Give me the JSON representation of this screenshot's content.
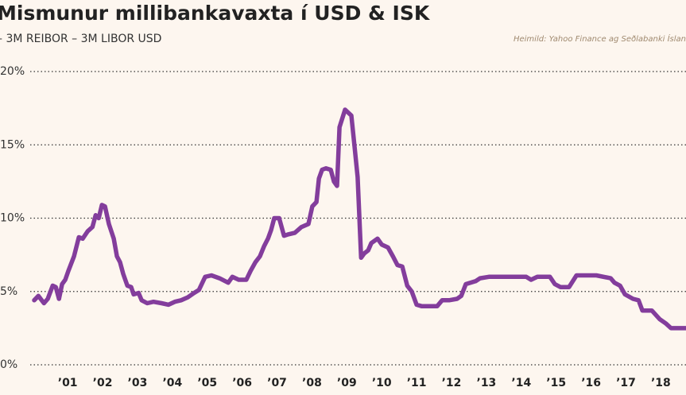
{
  "chart_data": {
    "type": "line",
    "title": "Mismunur millibankavaxta í USD & ISK",
    "subtitle": "– 3M REIBOR – 3M LIBOR USD",
    "source": "Heimild: Yahoo Finance ag Seðlabanki Íslan",
    "color": "#833d9c",
    "grid": true,
    "xlim": [
      1999.06,
      2018.72
    ],
    "ylim": [
      0,
      20
    ],
    "yticks": [
      {
        "value": 0,
        "label": "0%"
      },
      {
        "value": 5,
        "label": "5%"
      },
      {
        "value": 10,
        "label": "10%"
      },
      {
        "value": 15,
        "label": "15%"
      },
      {
        "value": 20,
        "label": "20%"
      }
    ],
    "xticks": [
      {
        "value": 2001,
        "label": "’01"
      },
      {
        "value": 2002,
        "label": "’02"
      },
      {
        "value": 2003,
        "label": "’03"
      },
      {
        "value": 2004,
        "label": "’04"
      },
      {
        "value": 2005,
        "label": "’05"
      },
      {
        "value": 2006,
        "label": "’06"
      },
      {
        "value": 2007,
        "label": "’07"
      },
      {
        "value": 2008,
        "label": "’08"
      },
      {
        "value": 2009,
        "label": "’09"
      },
      {
        "value": 2010,
        "label": "’10"
      },
      {
        "value": 2011,
        "label": "’11"
      },
      {
        "value": 2012,
        "label": "’12"
      },
      {
        "value": 2013,
        "label": "’13"
      },
      {
        "value": 2014,
        "label": "’14"
      },
      {
        "value": 2015,
        "label": "’15"
      },
      {
        "value": 2016,
        "label": "’16"
      },
      {
        "value": 2017,
        "label": "’17"
      },
      {
        "value": 2018,
        "label": "’18"
      }
    ],
    "x": [
      2000.04,
      2000.16,
      2000.32,
      2000.43,
      2000.57,
      2000.66,
      2000.75,
      2000.84,
      2000.93,
      2001.02,
      2001.18,
      2001.32,
      2001.43,
      2001.57,
      2001.71,
      2001.8,
      2001.89,
      2001.98,
      2002.07,
      2002.18,
      2002.32,
      2002.41,
      2002.5,
      2002.59,
      2002.71,
      2002.82,
      2002.89,
      2003.03,
      2003.12,
      2003.28,
      2003.46,
      2003.69,
      2003.89,
      2004.07,
      2004.25,
      2004.44,
      2004.62,
      2004.76,
      2004.94,
      2005.12,
      2005.35,
      2005.6,
      2005.72,
      2005.9,
      2006.12,
      2006.24,
      2006.38,
      2006.51,
      2006.63,
      2006.74,
      2006.83,
      2006.92,
      2007.06,
      2007.2,
      2007.33,
      2007.51,
      2007.7,
      2007.9,
      2008.01,
      2008.13,
      2008.2,
      2008.29,
      2008.4,
      2008.54,
      2008.63,
      2008.72,
      2008.79,
      2008.95,
      2009.13,
      2009.22,
      2009.31,
      2009.41,
      2009.5,
      2009.61,
      2009.7,
      2009.88,
      2010.0,
      2010.18,
      2010.32,
      2010.45,
      2010.59,
      2010.73,
      2010.86,
      2011.0,
      2011.14,
      2011.36,
      2011.59,
      2011.73,
      2011.93,
      2012.16,
      2012.28,
      2012.41,
      2012.69,
      2012.82,
      2013.07,
      2013.41,
      2013.87,
      2014.14,
      2014.28,
      2014.46,
      2014.82,
      2014.96,
      2015.12,
      2015.37,
      2015.58,
      2015.87,
      2016.15,
      2016.56,
      2016.67,
      2016.83,
      2016.97,
      2017.2,
      2017.36,
      2017.47,
      2017.74,
      2017.97,
      2018.15,
      2018.29,
      2018.54,
      2018.72
    ],
    "values": [
      4.4,
      4.7,
      4.2,
      4.5,
      5.4,
      5.3,
      4.5,
      5.5,
      5.8,
      6.4,
      7.4,
      8.7,
      8.6,
      9.1,
      9.4,
      10.2,
      10.0,
      10.9,
      10.8,
      9.6,
      8.6,
      7.4,
      7.0,
      6.2,
      5.4,
      5.3,
      4.8,
      4.9,
      4.4,
      4.2,
      4.3,
      4.2,
      4.1,
      4.3,
      4.4,
      4.6,
      4.9,
      5.1,
      6.0,
      6.1,
      5.9,
      5.6,
      6.0,
      5.8,
      5.8,
      6.4,
      7.0,
      7.4,
      8.1,
      8.6,
      9.2,
      10.0,
      10.0,
      8.8,
      8.9,
      9.0,
      9.4,
      9.6,
      10.8,
      11.1,
      12.7,
      13.3,
      13.4,
      13.3,
      12.5,
      12.2,
      16.2,
      17.4,
      17.0,
      14.9,
      12.8,
      7.3,
      7.6,
      7.8,
      8.3,
      8.6,
      8.2,
      8.0,
      7.4,
      6.8,
      6.7,
      5.4,
      5.0,
      4.1,
      4.0,
      4.0,
      4.0,
      4.4,
      4.4,
      4.5,
      4.7,
      5.5,
      5.7,
      5.9,
      6.0,
      6.0,
      6.0,
      6.0,
      5.8,
      6.0,
      6.0,
      5.5,
      5.3,
      5.3,
      6.1,
      6.1,
      6.1,
      5.9,
      5.6,
      5.4,
      4.8,
      4.5,
      4.4,
      3.7,
      3.7,
      3.1,
      2.8,
      2.5,
      2.5,
      2.5
    ]
  }
}
